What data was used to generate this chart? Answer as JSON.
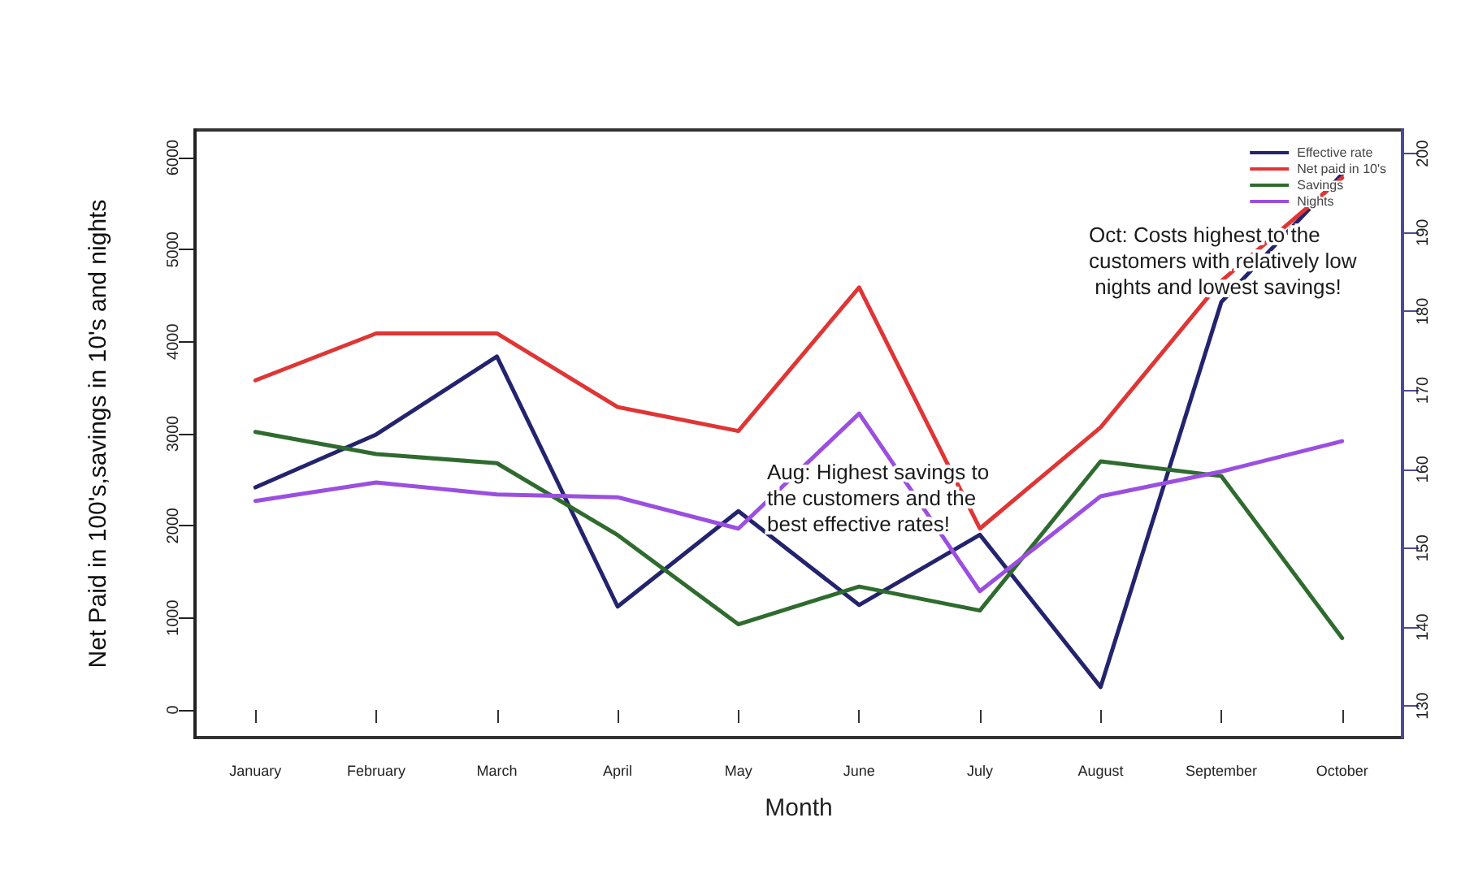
{
  "chart_data": {
    "type": "line",
    "xlabel": "Month",
    "ylabel": "Net Paid in 100's,savings in 10's and nights",
    "categories": [
      "January",
      "February",
      "March",
      "April",
      "May",
      "June",
      "July",
      "August",
      "September",
      "October"
    ],
    "series": [
      {
        "name": "Effective rate",
        "color": "#23236e",
        "axis": "y2",
        "values": [
          157.7,
          164.4,
          174.3,
          142.6,
          154.7,
          142.8,
          151.7,
          132.4,
          181.2,
          197.4
        ]
      },
      {
        "name": "Net paid in 10's",
        "color": "#e03535",
        "values": [
          3580,
          4090,
          4090,
          3290,
          3030,
          4590,
          1970,
          3070,
          4660,
          5780
        ]
      },
      {
        "name": "Savings",
        "color": "#2f6b2f",
        "values": [
          3020,
          2780,
          2680,
          1900,
          930,
          1340,
          1080,
          2700,
          2540,
          780
        ]
      },
      {
        "name": "Nights",
        "color": "#9b4fe0",
        "values": [
          2270,
          2470,
          2340,
          2310,
          1970,
          3220,
          1290,
          2320,
          2590,
          2920
        ]
      }
    ],
    "ylim": [
      -300,
      6300
    ],
    "yticks": [
      0,
      1000,
      2000,
      3000,
      4000,
      5000,
      6000
    ],
    "y2lim": [
      126,
      203
    ],
    "y2ticks": [
      130,
      140,
      150,
      160,
      170,
      180,
      190,
      200
    ],
    "annotations": [
      "Oct: Costs highest to the customers with relatively low nights and lowest savings!",
      "Aug: Highest savings to the customers and the best effective rates!"
    ],
    "grid": false,
    "legend": "top right",
    "marker": "none",
    "line_style": "solid"
  }
}
